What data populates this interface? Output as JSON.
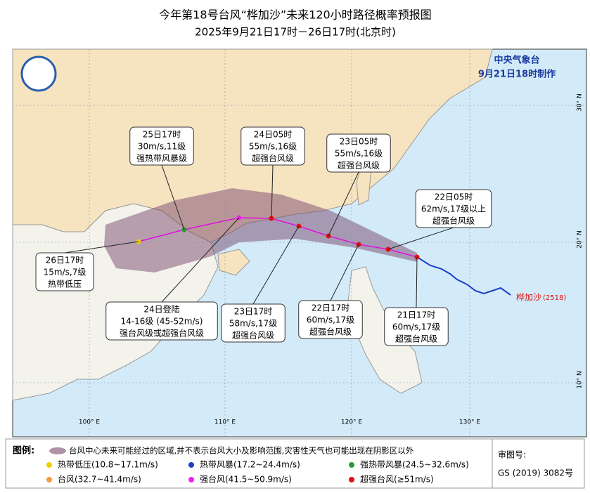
{
  "header": {
    "title": "今年第18号台风“桦加沙”未来120小时路径概率预报图",
    "subtitle": "2025年9月21日17时－26日17时(北京时)"
  },
  "agency": {
    "name": "中央气象台",
    "time": "9月21日18时制作"
  },
  "annotations": [
    {
      "lines": [
        "25日17时",
        "30m/s,11级",
        "强热带风暴级"
      ]
    },
    {
      "lines": [
        "24日05时",
        "55m/s,16级",
        "超强台风级"
      ]
    },
    {
      "lines": [
        "23日05时",
        "55m/s,16级",
        "超强台风级"
      ]
    },
    {
      "lines": [
        "22日05时",
        "62m/s,17级以上",
        "超强台风级"
      ]
    },
    {
      "lines": [
        "26日17时",
        "15m/s,7级",
        "热带低压"
      ]
    },
    {
      "lines": [
        "24日登陆",
        "14-16级 (45-52m/s)",
        "强台风级或超强台风级"
      ]
    },
    {
      "lines": [
        "23日17时",
        "58m/s,17级",
        "超强台风级"
      ]
    },
    {
      "lines": [
        "22日17时",
        "60m/s,17级",
        "超强台风级"
      ]
    },
    {
      "lines": [
        "21日17时",
        "60m/s,17级",
        "超强台风级"
      ]
    }
  ],
  "axes": {
    "longitudes": [
      "100° E",
      "110° E",
      "120° E",
      "130° E"
    ],
    "latitudes": [
      "30° N",
      "20° N",
      "10° N"
    ]
  },
  "typhoon": {
    "name": "桦加沙",
    "code": "(2518)"
  },
  "legend": {
    "label": "图例:",
    "area": "台风中心未来可能经过的区域,并不表示台风大小及影响范围,灾害性天气也可能出现在阴影区以外",
    "items": [
      {
        "text": "热带低压(10.8~17.1m/s)",
        "color": "#f2d000"
      },
      {
        "text": "热带风暴(17.2~24.4m/s)",
        "color": "#1c3fc8"
      },
      {
        "text": "强热带风暴(24.5~32.6m/s)",
        "color": "#2a9a3a"
      },
      {
        "text": "台风(32.7~41.4m/s)",
        "color": "#f59a3a"
      },
      {
        "text": "强台风(41.5~50.9m/s)",
        "color": "#ee22ee"
      },
      {
        "text": "超强台风(≥51m/s)",
        "color": "#e01010"
      }
    ]
  },
  "review": {
    "label": "审图号:",
    "number": "GS (2019) 3082号"
  }
}
